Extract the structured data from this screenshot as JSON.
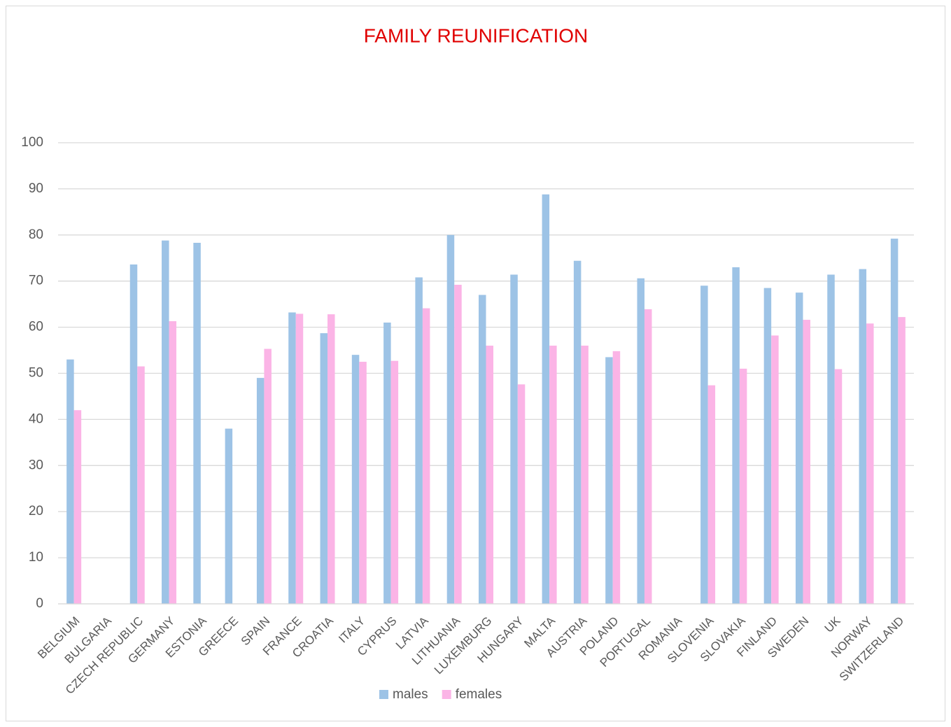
{
  "chart_data": {
    "type": "bar",
    "title": "FAMILY REUNIFICATION",
    "categories": [
      "BELGIUM",
      "BULGARIA",
      "CZECH REPUBLIC",
      "GERMANY",
      "ESTONIA",
      "GREECE",
      "SPAIN",
      "FRANCE",
      "CROATIA",
      "ITALY",
      "CYPRUS",
      "LATVIA",
      "LITHUANIA",
      "LUXEMBURG",
      "HUNGARY",
      "MALTA",
      "AUSTRIA",
      "POLAND",
      "PORTUGAL",
      "ROMANIA",
      "SLOVENIA",
      "SLOVAKIA",
      "FINLAND",
      "SWEDEN",
      "UK",
      "NORWAY",
      "SWITZERLAND"
    ],
    "series": [
      {
        "name": "males",
        "color": "#9dc3e6",
        "values": [
          53,
          null,
          73.6,
          78.8,
          78.3,
          38,
          49,
          63.2,
          58.7,
          54,
          61,
          70.8,
          80,
          67,
          71.4,
          88.8,
          74.4,
          53.5,
          70.6,
          null,
          69,
          73,
          68.5,
          67.5,
          71.4,
          72.6,
          79.2
        ]
      },
      {
        "name": "females",
        "color": "#fbb4e6",
        "values": [
          42,
          null,
          51.5,
          61.3,
          null,
          null,
          55.3,
          62.9,
          62.8,
          52.5,
          52.7,
          64.1,
          69.2,
          56,
          47.6,
          56,
          56,
          54.8,
          63.9,
          null,
          47.4,
          51,
          58.2,
          61.6,
          50.9,
          60.8,
          62.2
        ]
      }
    ],
    "ylim": [
      0,
      100
    ],
    "yticks": [
      0,
      10,
      20,
      30,
      40,
      50,
      60,
      70,
      80,
      90,
      100
    ],
    "grid": true,
    "legend": "bottom"
  }
}
